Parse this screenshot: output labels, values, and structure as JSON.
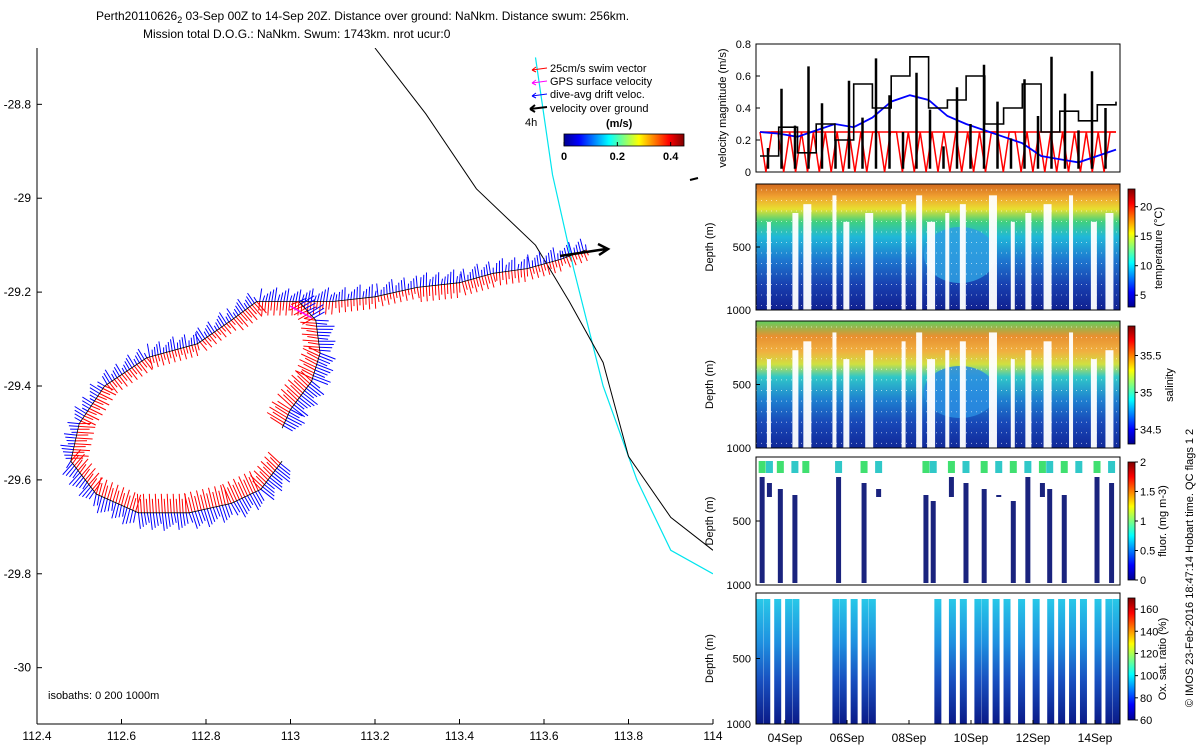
{
  "header": {
    "title_line1_pre": "Perth20110626",
    "title_line1_sub": "2",
    "title_line1_post": " 03-Sep 00Z to 14-Sep 20Z. Distance over ground: NaNkm. Distance swum: 256km.",
    "title_line2": "Mission total D.O.G.: NaNkm. Swum: 1743km. nrot ucur:0"
  },
  "colors": {
    "swim": "#ff0000",
    "gps": "#ff00ff",
    "drift": "#0000ff",
    "ground": "#000000",
    "coast": "#00e5ee",
    "isobath": "#000000"
  },
  "chart_data": [
    {
      "type": "map",
      "name": "track-map",
      "x_ticks": [
        "112.4",
        "112.6",
        "112.8",
        "113",
        "113.2",
        "113.4",
        "113.6",
        "113.8",
        "114"
      ],
      "y_ticks": [
        "-28.8",
        "-29",
        "-29.2",
        "-29.4",
        "-29.6",
        "-29.8",
        "-30"
      ],
      "xlim": [
        112.4,
        114
      ],
      "ylim": [
        -30.12,
        -28.68
      ],
      "isobaths_note": "isobaths: 0   200   1000m",
      "legend": [
        {
          "label": "25cm/s swim vector",
          "color": "#ff0000"
        },
        {
          "label": "GPS surface velocity",
          "color": "#ff00ff"
        },
        {
          "label": "dive-avg drift veloc.",
          "color": "#0000ff"
        },
        {
          "label": "velocity over ground",
          "color": "#000000"
        }
      ],
      "legend_time": "4h",
      "colorbar": {
        "title": "(m/s)",
        "ticks": [
          "0",
          "0.2",
          "0.4"
        ],
        "range": [
          0,
          0.45
        ]
      },
      "track": [
        [
          113.7,
          -29.11
        ],
        [
          113.64,
          -29.13
        ],
        [
          113.56,
          -29.15
        ],
        [
          113.48,
          -29.16
        ],
        [
          113.4,
          -29.18
        ],
        [
          113.3,
          -29.19
        ],
        [
          113.2,
          -29.21
        ],
        [
          113.1,
          -29.22
        ],
        [
          113.02,
          -29.22
        ],
        [
          112.92,
          -29.22
        ],
        [
          112.86,
          -29.26
        ],
        [
          112.78,
          -29.31
        ],
        [
          112.66,
          -29.34
        ],
        [
          112.56,
          -29.4
        ],
        [
          112.5,
          -29.48
        ],
        [
          112.48,
          -29.56
        ],
        [
          112.54,
          -29.63
        ],
        [
          112.64,
          -29.67
        ],
        [
          112.76,
          -29.67
        ],
        [
          112.86,
          -29.65
        ],
        [
          112.93,
          -29.62
        ],
        [
          112.98,
          -29.56
        ]
      ],
      "track_loop": [
        [
          113.02,
          -29.22
        ],
        [
          113.06,
          -29.26
        ],
        [
          113.07,
          -29.33
        ],
        [
          113.05,
          -29.39
        ],
        [
          113.0,
          -29.45
        ],
        [
          112.98,
          -29.49
        ]
      ],
      "isobath_0": [
        [
          113.58,
          -28.7
        ],
        [
          113.62,
          -28.95
        ],
        [
          113.67,
          -29.15
        ],
        [
          113.74,
          -29.4
        ],
        [
          113.82,
          -29.6
        ],
        [
          113.9,
          -29.75
        ],
        [
          114.0,
          -29.8
        ]
      ],
      "isobath_200": [
        [
          113.2,
          -28.68
        ],
        [
          113.32,
          -28.82
        ],
        [
          113.44,
          -28.98
        ],
        [
          113.58,
          -29.1
        ],
        [
          113.66,
          -29.22
        ],
        [
          113.74,
          -29.35
        ],
        [
          113.8,
          -29.55
        ],
        [
          113.9,
          -29.68
        ],
        [
          114.0,
          -29.75
        ]
      ]
    },
    {
      "type": "line",
      "name": "velocity-panel",
      "ylabel": "velocity magnitude (m/s)",
      "ylim": [
        0,
        0.8
      ],
      "y_ticks": [
        "0",
        "0.2",
        "0.4",
        "0.6",
        "0.8"
      ],
      "series": [
        {
          "name": "swim speed",
          "color": "#ff0000",
          "values": [
            0.25,
            0.0,
            0.25,
            0.25,
            0.0,
            0.25,
            0.0,
            0.25,
            0.0,
            0.25,
            0.0,
            0.25,
            0.0,
            0.25,
            0.0,
            0.25,
            0.0,
            0.25,
            0.0,
            0.25
          ]
        },
        {
          "name": "drift",
          "color": "#0000ff",
          "values": [
            0.25,
            0.24,
            0.22,
            0.26,
            0.3,
            0.28,
            0.34,
            0.44,
            0.48,
            0.45,
            0.35,
            0.3,
            0.26,
            0.22,
            0.18,
            0.1,
            0.08,
            0.06,
            0.1,
            0.14
          ]
        },
        {
          "name": "ground",
          "color": "#000000",
          "values": [
            0.1,
            0.28,
            0.12,
            0.3,
            0.2,
            0.55,
            0.4,
            0.6,
            0.72,
            0.4,
            0.45,
            0.6,
            0.3,
            0.4,
            0.55,
            0.25,
            0.38,
            0.32,
            0.42,
            0.44
          ]
        }
      ]
    },
    {
      "type": "heatmap",
      "name": "temperature-panel",
      "ylabel": "Depth (m)",
      "y_ticks": [
        "500",
        "1000"
      ],
      "ylim": [
        0,
        1000
      ],
      "colorbar_label": "temperature (°C)",
      "colorbar_ticks": [
        "5",
        "10",
        "15",
        "20"
      ],
      "colorbar_range": [
        3,
        23
      ]
    },
    {
      "type": "heatmap",
      "name": "salinity-panel",
      "ylabel": "Depth (m)",
      "y_ticks": [
        "500",
        "1000"
      ],
      "ylim": [
        0,
        1000
      ],
      "colorbar_label": "salinity",
      "colorbar_ticks": [
        "34.5",
        "35",
        "35.5"
      ],
      "colorbar_range": [
        34.3,
        35.9
      ]
    },
    {
      "type": "scatter",
      "name": "fluorescence-panel",
      "ylabel": "Depth (m)",
      "y_ticks": [
        "500",
        "1000"
      ],
      "ylim": [
        0,
        1000
      ],
      "colorbar_label": "fluor. (mg m-3)",
      "colorbar_ticks": [
        "0",
        "0.5",
        "1",
        "1.5",
        "2"
      ],
      "colorbar_range": [
        0,
        2
      ]
    },
    {
      "type": "scatter",
      "name": "oxygen-panel",
      "ylabel": "Depth (m)",
      "y_ticks": [
        "500",
        "1000"
      ],
      "ylim": [
        0,
        1000
      ],
      "colorbar_label": "Ox. sat. ratio (%)",
      "colorbar_ticks": [
        "60",
        "80",
        "100",
        "120",
        "140",
        "160"
      ],
      "colorbar_range": [
        60,
        170
      ],
      "x_ticks": [
        "04Sep",
        "06Sep",
        "08Sep",
        "10Sep",
        "12Sep",
        "14Sep"
      ]
    }
  ],
  "credit": "© IMOS 23-Feb-2016 18:47:14 Hobart time. QC flags 1  2"
}
